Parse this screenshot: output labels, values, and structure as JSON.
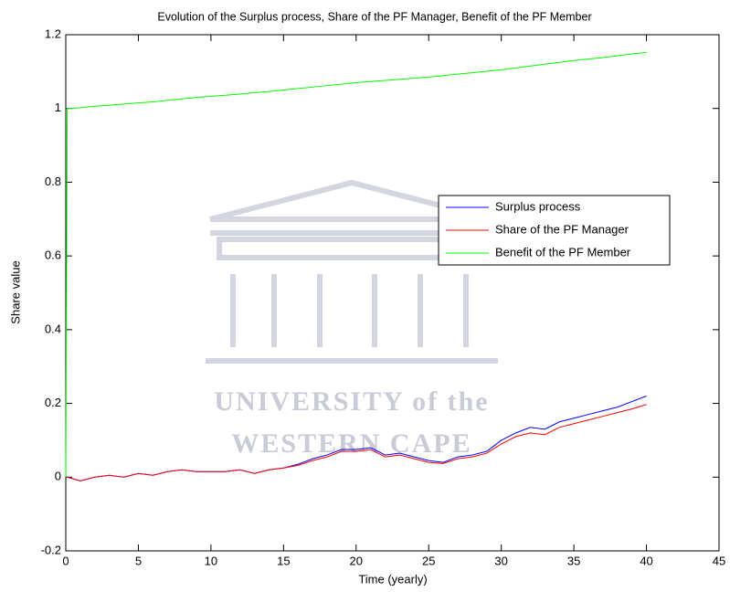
{
  "chart_data": {
    "type": "line",
    "title": "Evolution of the Surplus process, Share of the PF Manager, Benefit of the PF Member",
    "x_label": "Time (yearly)",
    "y_label": "Share  value",
    "x": [
      0,
      0.1,
      1,
      2,
      3,
      4,
      5,
      6,
      7,
      8,
      9,
      10,
      11,
      12,
      13,
      14,
      15,
      16,
      17,
      18,
      19,
      20,
      21,
      22,
      23,
      24,
      25,
      26,
      27,
      28,
      29,
      30,
      31,
      32,
      33,
      34,
      35,
      36,
      37,
      38,
      39,
      40
    ],
    "series": [
      {
        "name": "Surplus process",
        "color": "#0000ff",
        "values": [
          0,
          0,
          -0.01,
          0.0,
          0.005,
          0.0,
          0.01,
          0.005,
          0.015,
          0.02,
          0.015,
          0.015,
          0.015,
          0.02,
          0.01,
          0.02,
          0.025,
          0.035,
          0.05,
          0.06,
          0.075,
          0.075,
          0.08,
          0.06,
          0.065,
          0.055,
          0.045,
          0.04,
          0.055,
          0.06,
          0.07,
          0.1,
          0.12,
          0.135,
          0.13,
          0.15,
          0.16,
          0.17,
          0.18,
          0.19,
          0.205,
          0.22
        ]
      },
      {
        "name": "Share of the PF Manager",
        "color": "#ff0000",
        "values": [
          0,
          0,
          -0.01,
          0.0,
          0.005,
          0.0,
          0.01,
          0.005,
          0.015,
          0.02,
          0.015,
          0.015,
          0.015,
          0.02,
          0.01,
          0.02,
          0.025,
          0.032,
          0.045,
          0.055,
          0.07,
          0.07,
          0.075,
          0.055,
          0.06,
          0.05,
          0.04,
          0.037,
          0.05,
          0.055,
          0.065,
          0.09,
          0.11,
          0.12,
          0.115,
          0.135,
          0.145,
          0.155,
          0.165,
          0.175,
          0.185,
          0.197
        ]
      },
      {
        "name": "Benefit of the PF Member",
        "color": "#00ff00",
        "values": [
          0,
          1.0,
          1.002,
          1.006,
          1.009,
          1.012,
          1.015,
          1.018,
          1.022,
          1.026,
          1.03,
          1.033,
          1.036,
          1.039,
          1.043,
          1.046,
          1.05,
          1.054,
          1.058,
          1.062,
          1.066,
          1.07,
          1.073,
          1.076,
          1.079,
          1.082,
          1.085,
          1.089,
          1.093,
          1.097,
          1.101,
          1.105,
          1.11,
          1.115,
          1.12,
          1.125,
          1.13,
          1.134,
          1.138,
          1.143,
          1.148,
          1.152
        ]
      }
    ],
    "xlim": [
      0,
      45
    ],
    "xticks": [
      0,
      5,
      10,
      15,
      20,
      25,
      30,
      35,
      40,
      45
    ],
    "ylim": [
      -0.2,
      1.2
    ],
    "yticks": [
      -0.2,
      0,
      0.2,
      0.4,
      0.6,
      0.8,
      1,
      1.2
    ],
    "grid": false,
    "legend": "center-right",
    "watermark": [
      "UNIVERSITY of the",
      "WESTERN CAPE"
    ]
  }
}
